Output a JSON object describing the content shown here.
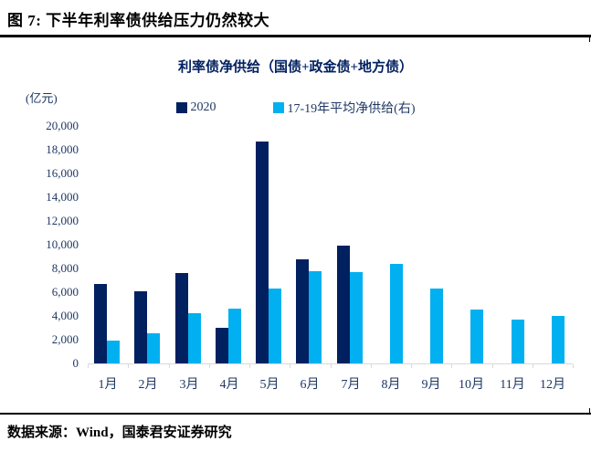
{
  "figure": {
    "title": "图 7:  下半年利率债供给压力仍然较大",
    "source": "数据来源：Wind，国泰君安证券研究"
  },
  "colors": {
    "series_2020": "#002060",
    "series_avg": "#00b0f0",
    "axis_text": "#1f3864",
    "axis_line": "#d9d9d9",
    "chart_title": "#002060",
    "rule": "#000000"
  },
  "chart_data": {
    "type": "bar",
    "title": "利率债净供给（国债+政金债+地方债）",
    "unit_label": "(亿元)",
    "categories": [
      "1月",
      "2月",
      "3月",
      "4月",
      "5月",
      "6月",
      "7月",
      "8月",
      "9月",
      "10月",
      "11月",
      "12月"
    ],
    "series": [
      {
        "name": "2020",
        "color": "#002060",
        "values": [
          6700,
          6100,
          7600,
          3000,
          18700,
          8800,
          9900,
          null,
          null,
          null,
          null,
          null
        ]
      },
      {
        "name": "17-19年平均净供给(右)",
        "color": "#00b0f0",
        "values": [
          1900,
          2500,
          4200,
          4600,
          6300,
          7800,
          7700,
          8400,
          6300,
          4500,
          3700,
          4000
        ]
      }
    ],
    "ylim": [
      0,
      20000
    ],
    "ytick_step": 2000,
    "ytick_labels": [
      "0",
      "2,000",
      "4,000",
      "6,000",
      "8,000",
      "10,000",
      "12,000",
      "14,000",
      "16,000",
      "18,000",
      "20,000"
    ],
    "legend_position": "top",
    "grid": false
  }
}
